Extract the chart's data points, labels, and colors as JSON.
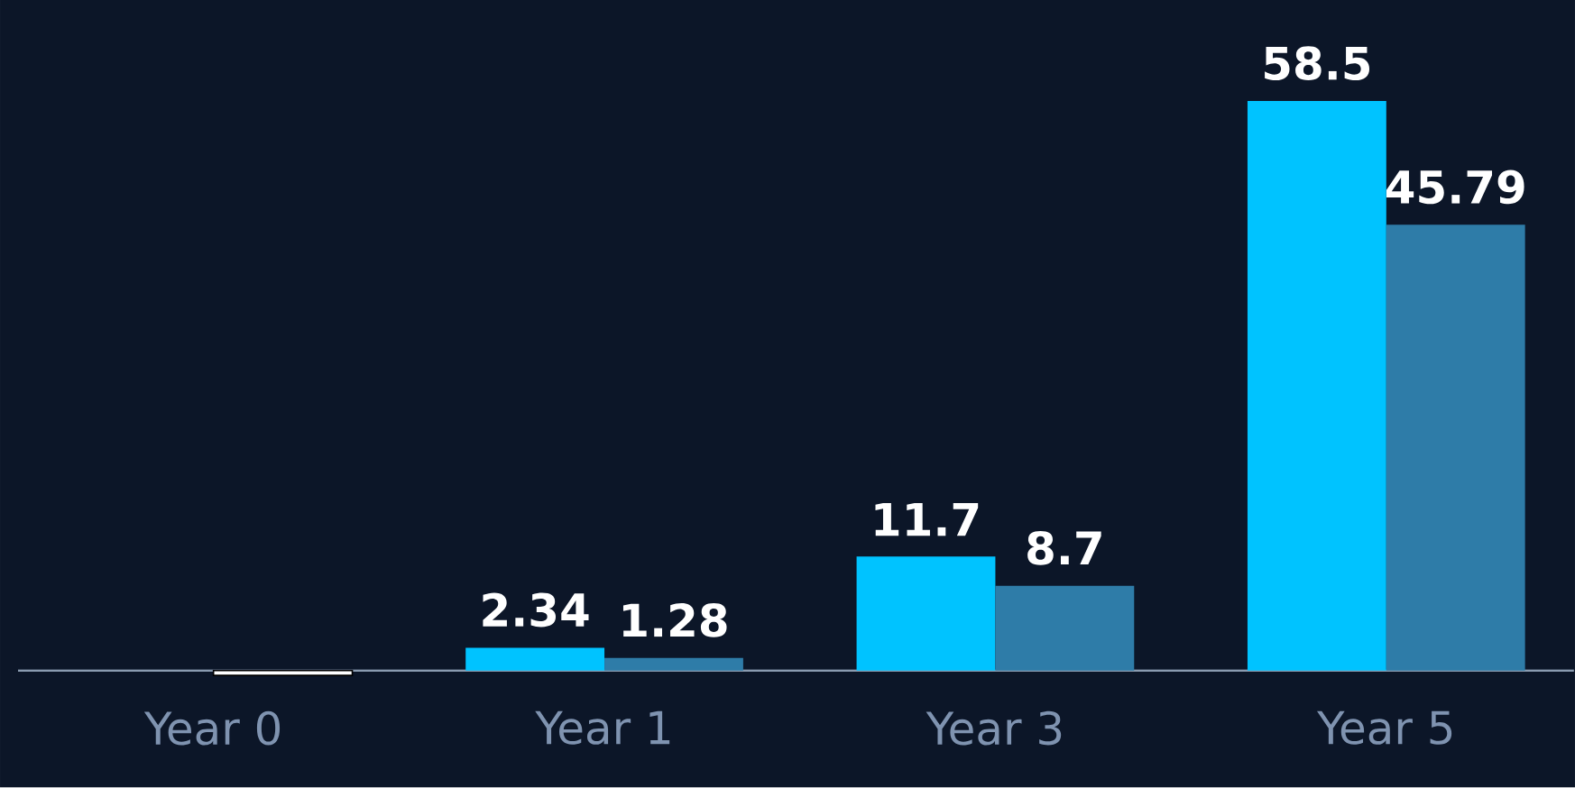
{
  "chart_data": {
    "type": "bar",
    "categories": [
      "Year 0",
      "Year 1",
      "Year 3",
      "Year 5"
    ],
    "series": [
      {
        "color": "#00c3ff",
        "values": [
          0,
          2.34,
          11.7,
          58.5
        ],
        "value_labels": [
          null,
          "2.34",
          "11.7",
          "58.5"
        ]
      },
      {
        "colors": [
          "#ffffff",
          "#2e7ca8",
          "#2e7ca8",
          "#2e7ca8"
        ],
        "values": [
          -0.5,
          1.28,
          8.7,
          45.79
        ],
        "value_labels": [
          null,
          "1.28",
          "8.7",
          "45.79"
        ]
      }
    ],
    "tick_labels": "x"
  }
}
